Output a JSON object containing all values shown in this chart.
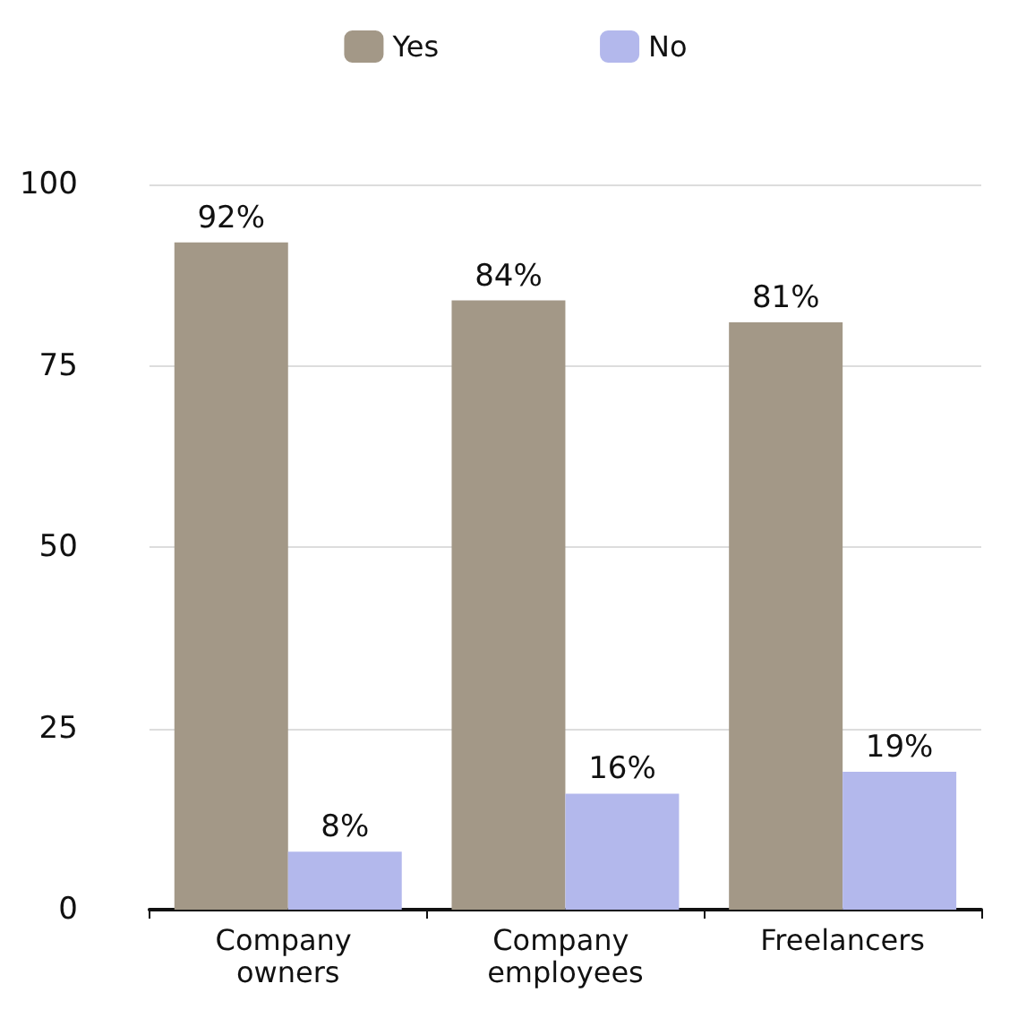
{
  "chart_data": {
    "type": "bar",
    "categories": [
      "Company owners",
      "Company employees",
      "Freelancers"
    ],
    "series": [
      {
        "name": "Yes",
        "color": "#a39887",
        "values": [
          92,
          84,
          81
        ],
        "value_labels": [
          "92%",
          "84%",
          "81%"
        ]
      },
      {
        "name": "No",
        "color": "#b3b8ec",
        "values": [
          8,
          16,
          19
        ],
        "value_labels": [
          "8%",
          "16%",
          "19%"
        ]
      }
    ],
    "ylim": [
      0,
      100
    ],
    "yticks": [
      0,
      25,
      50,
      75,
      100
    ],
    "grid": "y",
    "legend": "top"
  }
}
